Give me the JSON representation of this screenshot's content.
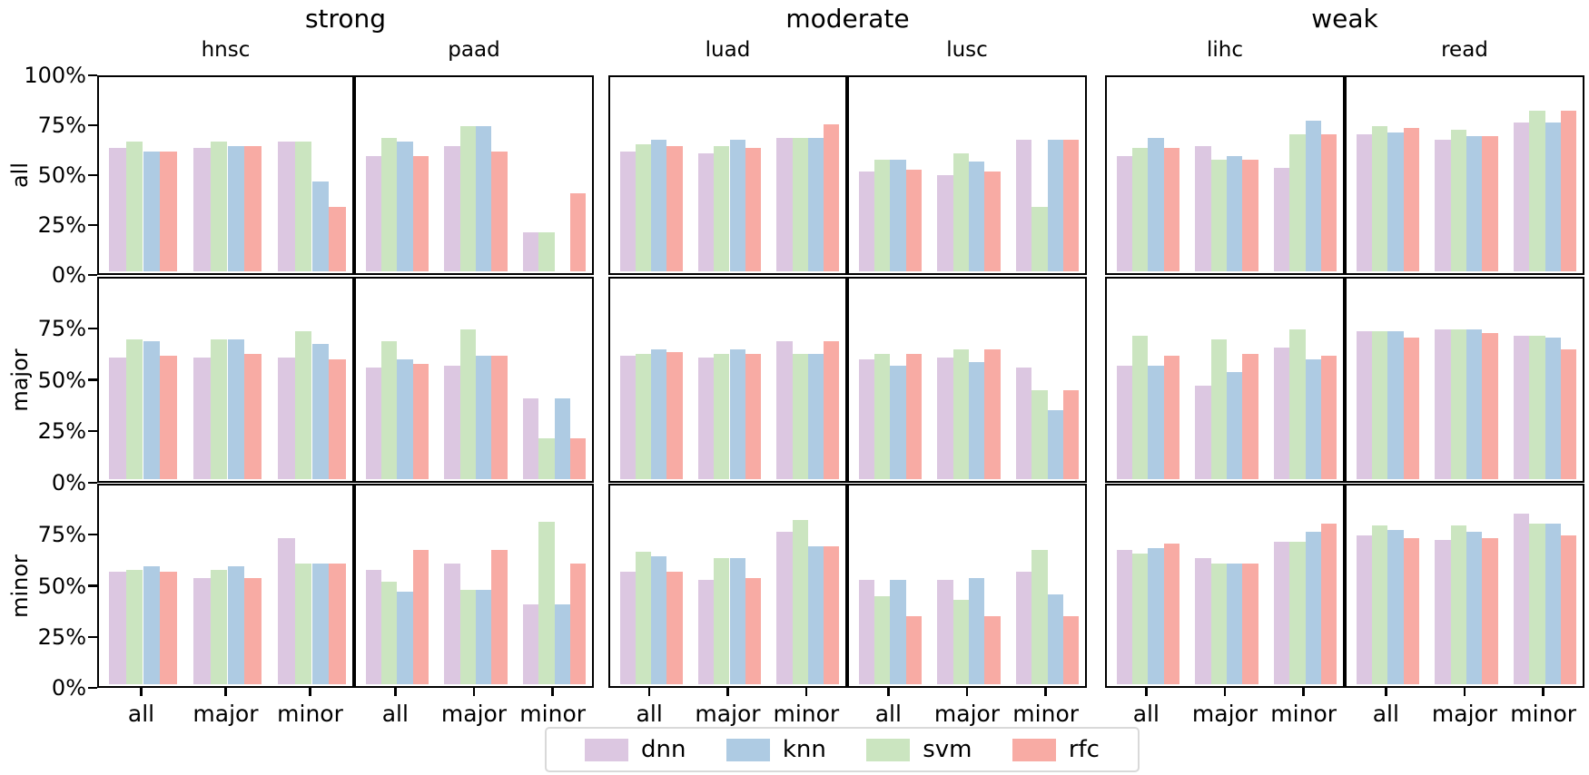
{
  "figure": {
    "group_titles": [
      "strong",
      "moderate",
      "weak"
    ],
    "subplot_titles": [
      "hnsc",
      "paad",
      "luad",
      "lusc",
      "lihc",
      "read"
    ],
    "row_labels": [
      "all",
      "major",
      "minor"
    ],
    "x_tick_labels": [
      "all",
      "major",
      "minor"
    ]
  },
  "legend": {
    "items": [
      {
        "label": "dnn",
        "color": "#dcc7e1"
      },
      {
        "label": "knn",
        "color": "#aecbe3"
      },
      {
        "label": "svm",
        "color": "#cbe5c0"
      },
      {
        "label": "rfc",
        "color": "#f8aba4"
      }
    ]
  },
  "chart_data": {
    "type": "bar",
    "title": "",
    "col_groups": [
      {
        "label": "strong",
        "subplots": [
          "hnsc",
          "paad"
        ]
      },
      {
        "label": "moderate",
        "subplots": [
          "luad",
          "lusc"
        ]
      },
      {
        "label": "weak",
        "subplots": [
          "lihc",
          "read"
        ]
      }
    ],
    "row_groups": [
      "all",
      "major",
      "minor"
    ],
    "categories": [
      "all",
      "major",
      "minor"
    ],
    "series_legend_order": [
      "dnn",
      "knn",
      "svm",
      "rfc"
    ],
    "bar_order": [
      "dnn",
      "svm",
      "knn",
      "rfc"
    ],
    "colors": {
      "dnn": "#dcc7e1",
      "knn": "#aecbe3",
      "svm": "#cbe5c0",
      "rfc": "#f8aba4"
    },
    "ylim": [
      0,
      100
    ],
    "yticks": {
      "first_row": [
        "100%",
        "75%",
        "50%",
        "25%",
        "0%"
      ],
      "other_rows": [
        "75%",
        "50%",
        "25%",
        "0%"
      ]
    },
    "grid": false,
    "legend_position": "bottom",
    "values": {
      "hnsc": {
        "all": {
          "all": {
            "dnn": 63,
            "knn": 61,
            "svm": 66,
            "rfc": 61
          },
          "major": {
            "dnn": 63,
            "knn": 64,
            "svm": 66,
            "rfc": 64
          },
          "minor": {
            "dnn": 66,
            "knn": 46,
            "svm": 66,
            "rfc": 33
          }
        },
        "major": {
          "all": {
            "dnn": 60,
            "knn": 68,
            "svm": 69,
            "rfc": 61
          },
          "major": {
            "dnn": 60,
            "knn": 69,
            "svm": 69,
            "rfc": 62
          },
          "minor": {
            "dnn": 60,
            "knn": 67,
            "svm": 73,
            "rfc": 59
          }
        },
        "minor": {
          "all": {
            "dnn": 56,
            "knn": 59,
            "svm": 57,
            "rfc": 56
          },
          "major": {
            "dnn": 53,
            "knn": 59,
            "svm": 57,
            "rfc": 53
          },
          "minor": {
            "dnn": 73,
            "knn": 60,
            "svm": 60,
            "rfc": 60
          }
        }
      },
      "paad": {
        "all": {
          "all": {
            "dnn": 59,
            "knn": 66,
            "svm": 68,
            "rfc": 59
          },
          "major": {
            "dnn": 64,
            "knn": 74,
            "svm": 74,
            "rfc": 61
          },
          "minor": {
            "dnn": 20,
            "knn": 0,
            "svm": 20,
            "rfc": 40
          }
        },
        "major": {
          "all": {
            "dnn": 55,
            "knn": 59,
            "svm": 68,
            "rfc": 57
          },
          "major": {
            "dnn": 56,
            "knn": 61,
            "svm": 74,
            "rfc": 61
          },
          "minor": {
            "dnn": 40,
            "knn": 40,
            "svm": 20,
            "rfc": 20
          }
        },
        "minor": {
          "all": {
            "dnn": 57,
            "knn": 46,
            "svm": 51,
            "rfc": 67
          },
          "major": {
            "dnn": 60,
            "knn": 47,
            "svm": 47,
            "rfc": 67
          },
          "minor": {
            "dnn": 40,
            "knn": 40,
            "svm": 81,
            "rfc": 60
          }
        }
      },
      "luad": {
        "all": {
          "all": {
            "dnn": 61,
            "knn": 67,
            "svm": 65,
            "rfc": 64
          },
          "major": {
            "dnn": 60,
            "knn": 67,
            "svm": 64,
            "rfc": 63
          },
          "minor": {
            "dnn": 68,
            "knn": 68,
            "svm": 68,
            "rfc": 75
          }
        },
        "major": {
          "all": {
            "dnn": 61,
            "knn": 64,
            "svm": 62,
            "rfc": 63
          },
          "major": {
            "dnn": 60,
            "knn": 64,
            "svm": 62,
            "rfc": 62
          },
          "minor": {
            "dnn": 68,
            "knn": 62,
            "svm": 62,
            "rfc": 68
          }
        },
        "minor": {
          "all": {
            "dnn": 56,
            "knn": 64,
            "svm": 66,
            "rfc": 56
          },
          "major": {
            "dnn": 52,
            "knn": 63,
            "svm": 63,
            "rfc": 53
          },
          "minor": {
            "dnn": 76,
            "knn": 69,
            "svm": 82,
            "rfc": 69
          }
        }
      },
      "lusc": {
        "all": {
          "all": {
            "dnn": 51,
            "knn": 57,
            "svm": 57,
            "rfc": 52
          },
          "major": {
            "dnn": 49,
            "knn": 56,
            "svm": 60,
            "rfc": 51
          },
          "minor": {
            "dnn": 67,
            "knn": 67,
            "svm": 33,
            "rfc": 67
          }
        },
        "major": {
          "all": {
            "dnn": 59,
            "knn": 56,
            "svm": 62,
            "rfc": 62
          },
          "major": {
            "dnn": 60,
            "knn": 58,
            "svm": 64,
            "rfc": 64
          },
          "minor": {
            "dnn": 55,
            "knn": 34,
            "svm": 44,
            "rfc": 44
          }
        },
        "minor": {
          "all": {
            "dnn": 52,
            "knn": 52,
            "svm": 44,
            "rfc": 34
          },
          "major": {
            "dnn": 52,
            "knn": 53,
            "svm": 42,
            "rfc": 34
          },
          "minor": {
            "dnn": 56,
            "knn": 45,
            "svm": 67,
            "rfc": 34
          }
        }
      },
      "lihc": {
        "all": {
          "all": {
            "dnn": 59,
            "knn": 68,
            "svm": 63,
            "rfc": 63
          },
          "major": {
            "dnn": 64,
            "knn": 59,
            "svm": 57,
            "rfc": 57
          },
          "minor": {
            "dnn": 53,
            "knn": 77,
            "svm": 70,
            "rfc": 70
          }
        },
        "major": {
          "all": {
            "dnn": 56,
            "knn": 56,
            "svm": 71,
            "rfc": 61
          },
          "major": {
            "dnn": 46,
            "knn": 53,
            "svm": 69,
            "rfc": 62
          },
          "minor": {
            "dnn": 65,
            "knn": 59,
            "svm": 74,
            "rfc": 61
          }
        },
        "minor": {
          "all": {
            "dnn": 67,
            "knn": 68,
            "svm": 65,
            "rfc": 70
          },
          "major": {
            "dnn": 63,
            "knn": 60,
            "svm": 60,
            "rfc": 60
          },
          "minor": {
            "dnn": 71,
            "knn": 76,
            "svm": 71,
            "rfc": 80
          }
        }
      },
      "read": {
        "all": {
          "all": {
            "dnn": 70,
            "knn": 71,
            "svm": 74,
            "rfc": 73
          },
          "major": {
            "dnn": 67,
            "knn": 69,
            "svm": 72,
            "rfc": 69
          },
          "minor": {
            "dnn": 76,
            "knn": 76,
            "svm": 82,
            "rfc": 82
          }
        },
        "major": {
          "all": {
            "dnn": 73,
            "knn": 73,
            "svm": 73,
            "rfc": 70
          },
          "major": {
            "dnn": 74,
            "knn": 74,
            "svm": 74,
            "rfc": 72
          },
          "minor": {
            "dnn": 71,
            "knn": 70,
            "svm": 71,
            "rfc": 64
          }
        },
        "minor": {
          "all": {
            "dnn": 74,
            "knn": 77,
            "svm": 79,
            "rfc": 73
          },
          "major": {
            "dnn": 72,
            "knn": 76,
            "svm": 79,
            "rfc": 73
          },
          "minor": {
            "dnn": 85,
            "knn": 80,
            "svm": 80,
            "rfc": 74
          }
        }
      }
    }
  }
}
